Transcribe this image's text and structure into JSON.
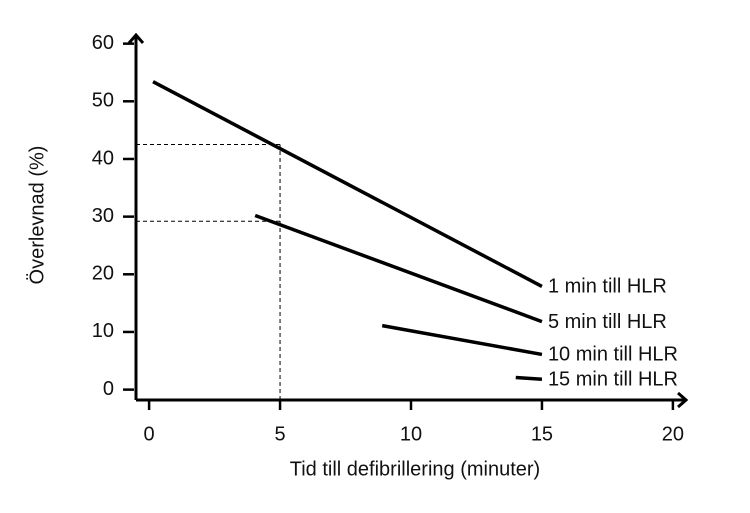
{
  "chart_data": {
    "type": "line",
    "x_label": "Tid till defibrillering (minuter)",
    "y_label": "Överlevnad (%)",
    "xlim": [
      -0.5,
      20.5
    ],
    "xticks": [
      0,
      5,
      10,
      15,
      20
    ],
    "ylim": [
      -1.8,
      61.5
    ],
    "yticks": [
      0,
      10,
      20,
      30,
      40,
      50,
      60
    ],
    "grid": false,
    "series": [
      {
        "name": "1 min till HLR",
        "color": "#000000",
        "x": [
          0.15,
          15
        ],
        "values": [
          53.4,
          17.9
        ]
      },
      {
        "name": "5 min till HLR",
        "color": "#000000",
        "x": [
          4.05,
          15
        ],
        "values": [
          30.2,
          11.8
        ]
      },
      {
        "name": "10 min till HLR",
        "color": "#000000",
        "x": [
          8.9,
          15
        ],
        "values": [
          11.1,
          6.1
        ]
      },
      {
        "name": "15 min till HLR",
        "color": "#000000",
        "x": [
          14,
          15
        ],
        "values": [
          2.1,
          1.8
        ]
      }
    ],
    "reference_lines": {
      "x": 5,
      "y": [
        42.5,
        29.2
      ]
    }
  }
}
